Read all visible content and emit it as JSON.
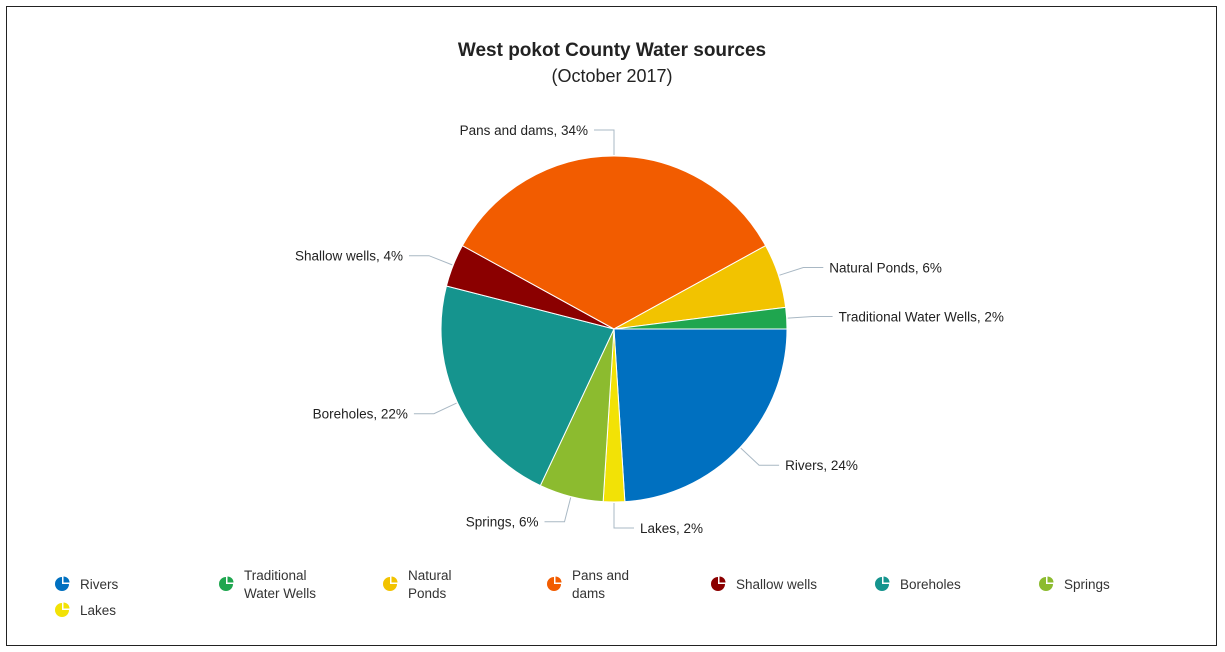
{
  "chart_data": {
    "type": "pie",
    "title": "West pokot County Water sources",
    "subtitle": "(October 2017)",
    "slices": [
      {
        "name": "Rivers",
        "value": 24,
        "label": "Rivers, 24%",
        "color": "#0070c0",
        "legend_lines": [
          "Rivers"
        ]
      },
      {
        "name": "Lakes",
        "value": 2,
        "label": "Lakes, 2%",
        "color": "#f2e206",
        "legend_lines": [
          "Lakes"
        ]
      },
      {
        "name": "Springs",
        "value": 6,
        "label": "Springs, 6%",
        "color": "#8cbb2f",
        "legend_lines": [
          "Springs"
        ]
      },
      {
        "name": "Boreholes",
        "value": 22,
        "label": "Boreholes, 22%",
        "color": "#15948e",
        "legend_lines": [
          "Boreholes"
        ]
      },
      {
        "name": "Shallow wells",
        "value": 4,
        "label": "Shallow wells, 4%",
        "color": "#8b0000",
        "legend_lines": [
          "Shallow wells"
        ]
      },
      {
        "name": "Pans and dams",
        "value": 34,
        "label": "Pans and dams, 34%",
        "color": "#f25c00",
        "legend_lines": [
          "Pans and",
          "dams"
        ]
      },
      {
        "name": "Natural Ponds",
        "value": 6,
        "label": "Natural Ponds, 6%",
        "color": "#f2c300",
        "legend_lines": [
          "Natural",
          "Ponds"
        ]
      },
      {
        "name": "Traditional Water Wells",
        "value": 2,
        "label": "Traditional Water Wells, 2%",
        "color": "#1fa64f",
        "legend_lines": [
          "Traditional",
          "Water Wells"
        ]
      }
    ],
    "legend_order": [
      "Rivers",
      "Traditional Water Wells",
      "Natural Ponds",
      "Pans and dams",
      "Shallow wells",
      "Boreholes",
      "Springs",
      "Lakes"
    ],
    "legend_position": "bottom",
    "start_direction": "east, clockwise"
  }
}
